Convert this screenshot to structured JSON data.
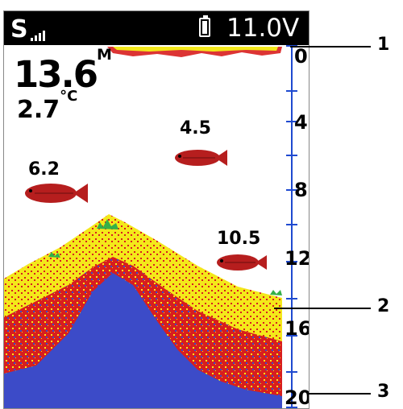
{
  "status": {
    "signal": "S",
    "voltage": "11.0V",
    "battery_icon": "battery-icon"
  },
  "readouts": {
    "depth_value": "13.6",
    "depth_unit": "M",
    "temp_value": "2.7",
    "temp_unit": "°C"
  },
  "depth_scale": [
    "0",
    "4",
    "8",
    "12",
    "16",
    "20"
  ],
  "fish": [
    {
      "label": "4.5"
    },
    {
      "label": "6.2"
    },
    {
      "label": "10.5"
    }
  ],
  "callouts": [
    "1",
    "2",
    "3"
  ],
  "colors": {
    "bottom_yellow": "#f4e81a",
    "bottom_red": "#d81e1e",
    "bottom_blue": "#3c4bc8",
    "scale_blue": "#1f4ad0",
    "weed_green": "#35b048"
  }
}
